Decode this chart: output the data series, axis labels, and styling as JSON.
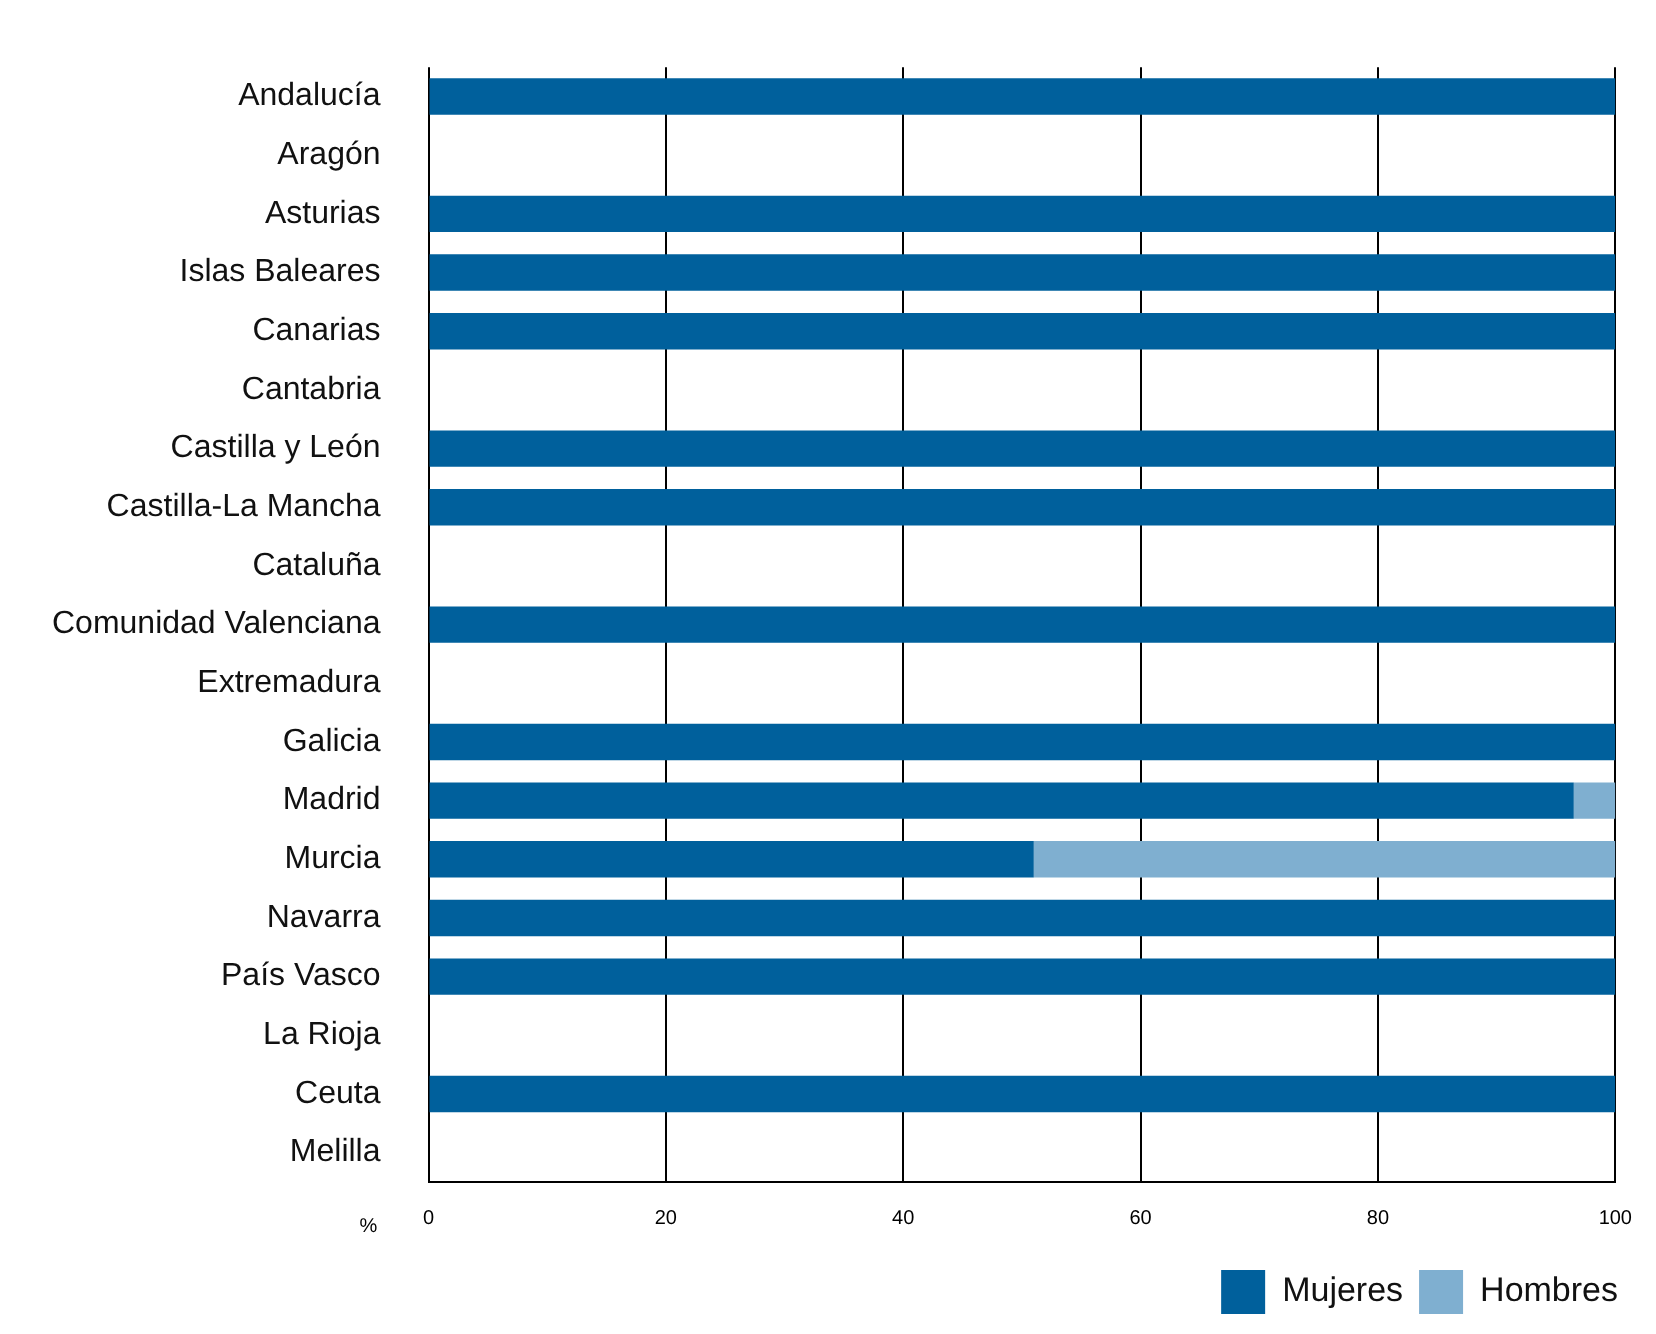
{
  "chart_data": {
    "type": "bar",
    "orientation": "horizontal",
    "stacked": true,
    "categories": [
      "Andalucía",
      "Aragón",
      "Asturias",
      "Islas Baleares",
      "Canarias",
      "Cantabria",
      "Castilla y León",
      "Castilla-La Mancha",
      "Cataluña",
      "Comunidad Valenciana",
      "Extremadura",
      "Galicia",
      "Madrid",
      "Murcia",
      "Navarra",
      "País Vasco",
      "La Rioja",
      "Ceuta",
      "Melilla"
    ],
    "series": [
      {
        "name": "Mujeres",
        "color": "#00609c",
        "values": [
          100,
          null,
          100,
          100,
          100,
          null,
          100,
          100,
          null,
          100,
          null,
          100,
          96.5,
          51,
          100,
          100,
          null,
          100,
          null
        ]
      },
      {
        "name": "Hombres",
        "color": "#7fafd0",
        "values": [
          null,
          null,
          null,
          null,
          null,
          null,
          null,
          null,
          null,
          null,
          null,
          null,
          3.5,
          49,
          null,
          null,
          null,
          null,
          null
        ]
      }
    ],
    "xlabel": "%",
    "xlim": [
      0,
      100
    ],
    "xticks": [
      0,
      20,
      40,
      60,
      80,
      100
    ],
    "grid": "x",
    "legend": "bottom right"
  }
}
